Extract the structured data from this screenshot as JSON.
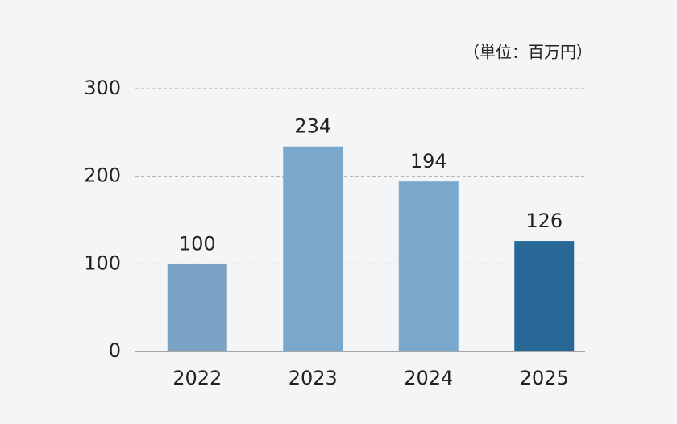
{
  "chart_data": {
    "type": "bar",
    "unit_label": "（単位：百万円）",
    "categories": [
      "2022",
      "2023",
      "2024",
      "2025"
    ],
    "values": [
      100,
      234,
      194,
      126
    ],
    "colors": [
      "#7aa3c6",
      "#7aa8cc",
      "#7aa8cc",
      "#276897"
    ],
    "ylim": [
      0,
      300
    ],
    "yticks": [
      0,
      100,
      200,
      300
    ],
    "grid": true
  }
}
